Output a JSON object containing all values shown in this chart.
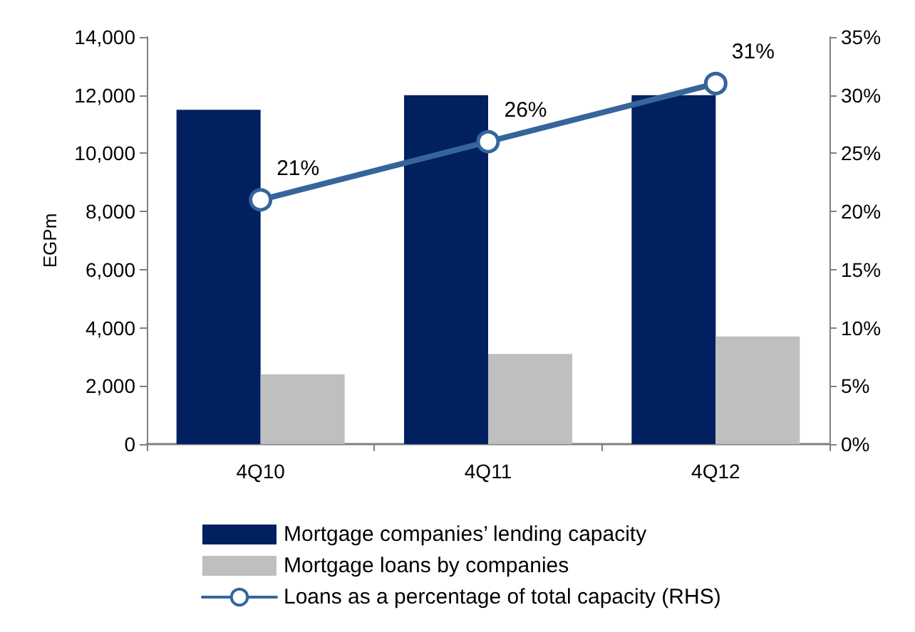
{
  "chart_data": {
    "type": "bar",
    "ylabel": "EGPm",
    "categories": [
      "4Q10",
      "4Q11",
      "4Q12"
    ],
    "series": [
      {
        "name": "Mortgage companies’ lending capacity",
        "color": "#002060",
        "values": [
          11500,
          12000,
          12000
        ]
      },
      {
        "name": "Mortgage loans by companies",
        "color": "#bfbfbf",
        "values": [
          2400,
          3100,
          3700
        ]
      },
      {
        "name": "Loans as a percentage of total capacity (RHS)",
        "type": "line",
        "axis": "y2",
        "color": "#35659b",
        "marker": "circle",
        "values": [
          21,
          26,
          31
        ],
        "value_labels": [
          "21%",
          "26%",
          "31%"
        ]
      }
    ],
    "ylim": [
      0,
      14000
    ],
    "yticks": [
      {
        "value": 0,
        "label": "0"
      },
      {
        "value": 2000,
        "label": "2,000"
      },
      {
        "value": 4000,
        "label": "4,000"
      },
      {
        "value": 6000,
        "label": "6,000"
      },
      {
        "value": 8000,
        "label": "8,000"
      },
      {
        "value": 10000,
        "label": "10,000"
      },
      {
        "value": 12000,
        "label": "12,000"
      },
      {
        "value": 14000,
        "label": "14,000"
      }
    ],
    "y2lim": [
      0,
      35
    ],
    "y2ticks": [
      {
        "value": 0,
        "label": "0%"
      },
      {
        "value": 5,
        "label": "5%"
      },
      {
        "value": 10,
        "label": "10%"
      },
      {
        "value": 15,
        "label": "15%"
      },
      {
        "value": 20,
        "label": "20%"
      },
      {
        "value": 25,
        "label": "25%"
      },
      {
        "value": 30,
        "label": "30%"
      },
      {
        "value": 35,
        "label": "35%"
      }
    ],
    "grid": false,
    "legend": "bottom"
  }
}
